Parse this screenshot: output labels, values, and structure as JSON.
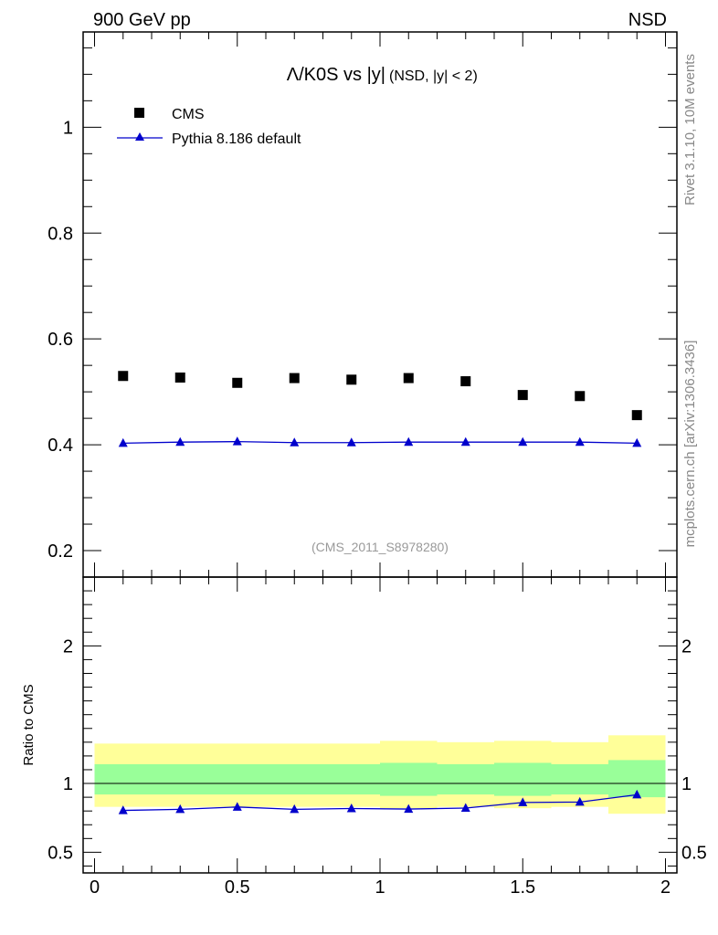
{
  "header": {
    "left": "900 GeV pp",
    "right": "NSD"
  },
  "side_text": {
    "upper": "Rivet 3.1.10,  10M events",
    "lower": "mcplots.cern.ch [arXiv:1306.3436]"
  },
  "chart_data": {
    "type": "scatter",
    "title_main": "Λ/K0S vs |y|",
    "title_sub": "(NSD, |y| < 2)",
    "watermark": "(CMS_2011_S8978280)",
    "xlim": [
      -0.04,
      2.04
    ],
    "main": {
      "ylim": [
        0.15,
        1.18
      ],
      "yticks": [
        0.2,
        0.4,
        0.6,
        0.8,
        1
      ],
      "ytick_labels": [
        "0.2",
        "0.4",
        "0.6",
        "0.8",
        "1"
      ],
      "series": [
        {
          "name": "CMS",
          "color": "#000000",
          "marker": "square",
          "x": [
            0.1,
            0.3,
            0.5,
            0.7,
            0.9,
            1.1,
            1.3,
            1.5,
            1.7,
            1.9
          ],
          "y": [
            0.53,
            0.527,
            0.517,
            0.526,
            0.523,
            0.526,
            0.52,
            0.494,
            0.492,
            0.456
          ]
        },
        {
          "name": "Pythia 8.186 default",
          "color": "#0000cc",
          "marker": "triangle",
          "x": [
            0.1,
            0.3,
            0.5,
            0.7,
            0.9,
            1.1,
            1.3,
            1.5,
            1.7,
            1.9
          ],
          "y": [
            0.403,
            0.405,
            0.406,
            0.404,
            0.404,
            0.405,
            0.405,
            0.405,
            0.405,
            0.403
          ]
        }
      ]
    },
    "ratio": {
      "ylabel": "Ratio to CMS",
      "ylim": [
        0.35,
        2.5
      ],
      "yticks": [
        0.5,
        1,
        2
      ],
      "ytick_labels": [
        "0.5",
        "1",
        "2"
      ],
      "bins": [
        [
          0,
          0.2
        ],
        [
          0.2,
          0.4
        ],
        [
          0.4,
          0.6
        ],
        [
          0.6,
          0.8
        ],
        [
          0.8,
          1.0
        ],
        [
          1.0,
          1.2
        ],
        [
          1.2,
          1.4
        ],
        [
          1.4,
          1.6
        ],
        [
          1.6,
          1.8
        ],
        [
          1.8,
          2.0
        ]
      ],
      "band_outer": {
        "color": "#ffff99",
        "lo": [
          0.83,
          0.83,
          0.83,
          0.83,
          0.83,
          0.82,
          0.83,
          0.82,
          0.83,
          0.78
        ],
        "hi": [
          1.29,
          1.29,
          1.29,
          1.29,
          1.29,
          1.31,
          1.3,
          1.31,
          1.3,
          1.35
        ]
      },
      "band_inner": {
        "color": "#99ff99",
        "lo": [
          0.92,
          0.92,
          0.92,
          0.92,
          0.92,
          0.91,
          0.92,
          0.91,
          0.92,
          0.9
        ],
        "hi": [
          1.14,
          1.14,
          1.14,
          1.14,
          1.14,
          1.15,
          1.14,
          1.15,
          1.14,
          1.17
        ]
      },
      "series": {
        "name": "Pythia 8.186 default",
        "color": "#0000cc",
        "x": [
          0.1,
          0.3,
          0.5,
          0.7,
          0.9,
          1.1,
          1.3,
          1.5,
          1.7,
          1.9
        ],
        "y": [
          0.804,
          0.812,
          0.829,
          0.812,
          0.818,
          0.814,
          0.821,
          0.862,
          0.865,
          0.918
        ]
      }
    },
    "xticks": [
      0,
      0.5,
      1,
      1.5,
      2
    ],
    "xtick_labels": [
      "0",
      "0.5",
      "1",
      "1.5",
      "2"
    ]
  }
}
